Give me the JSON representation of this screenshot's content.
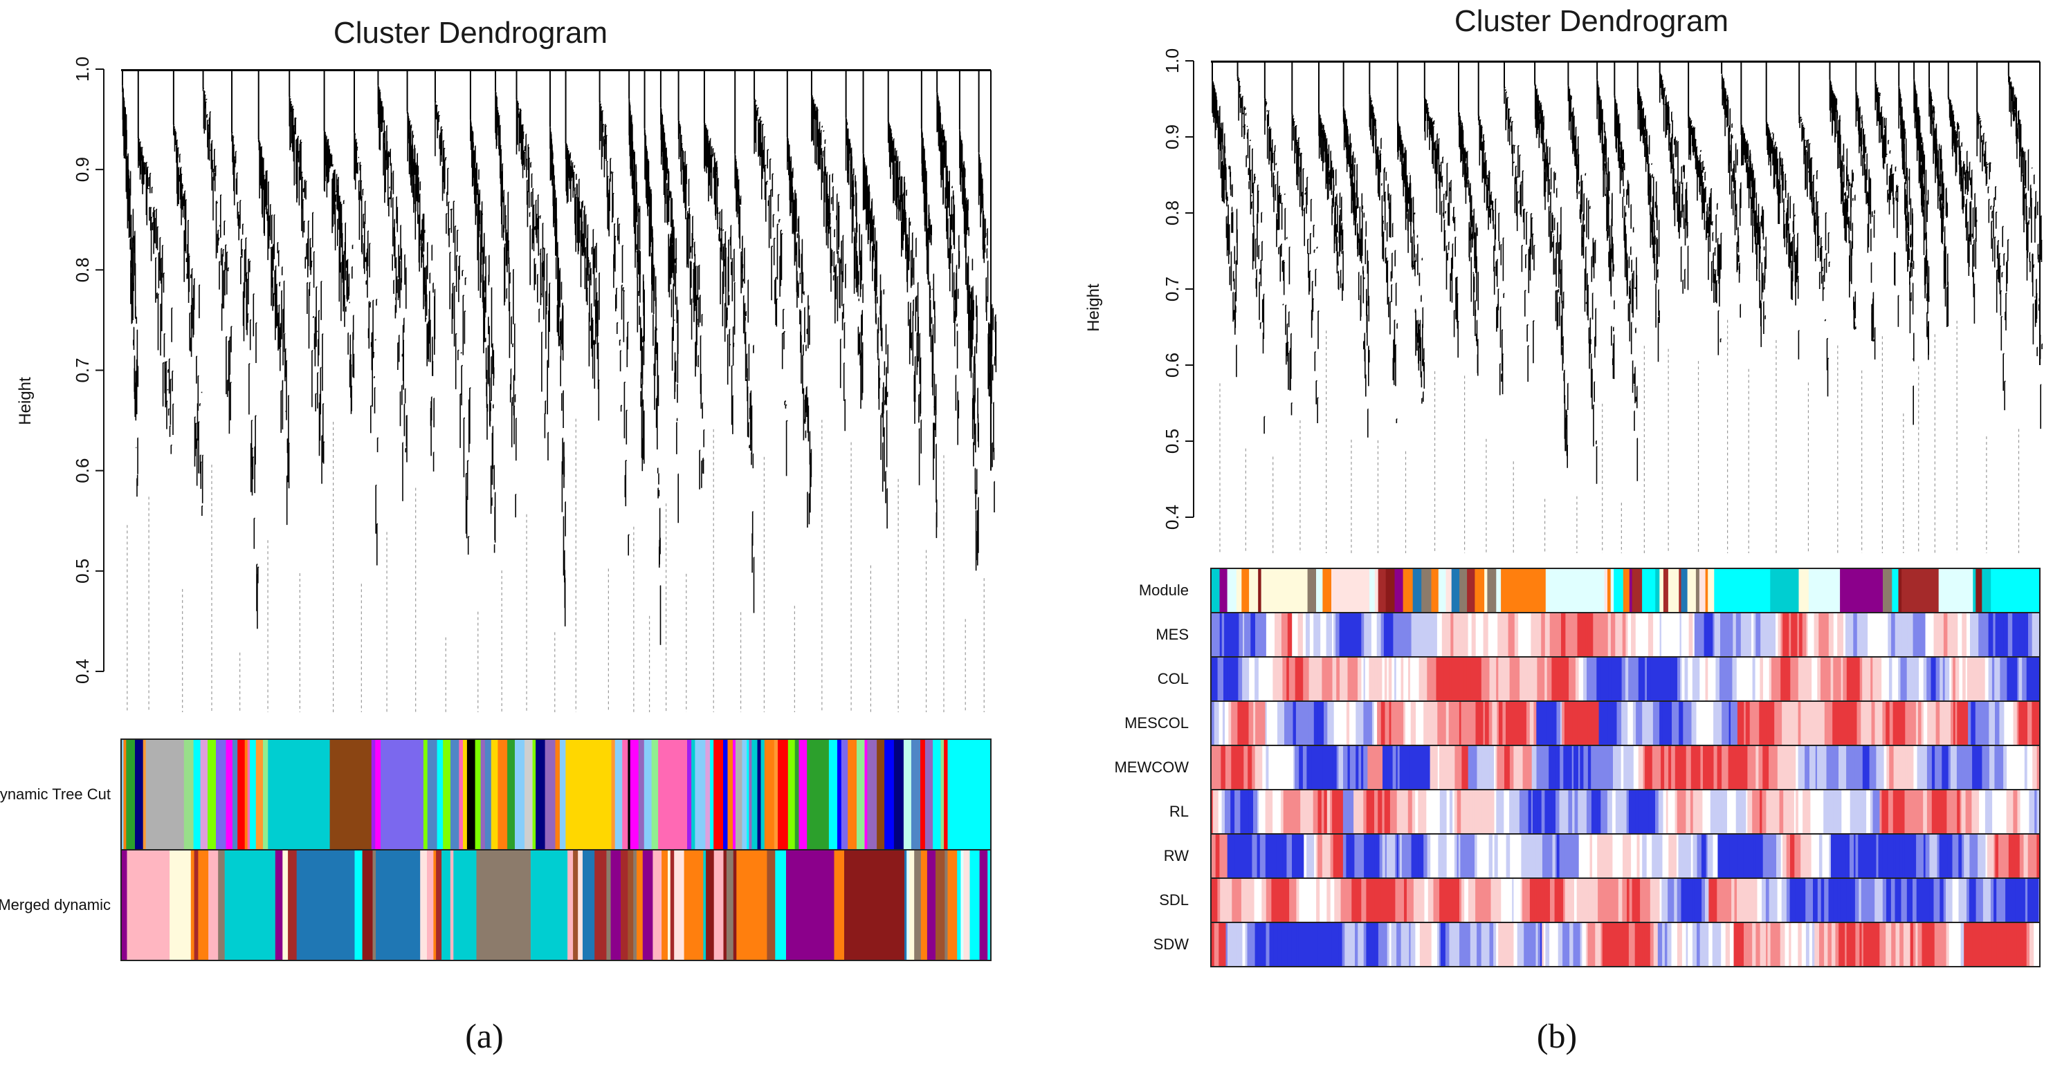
{
  "chart_data": [
    {
      "panel_id": "a",
      "type": "dendrogram",
      "title": "Cluster Dendrogram",
      "ylabel": "Height",
      "y_ticks": [
        0.4,
        0.5,
        0.6,
        0.7,
        0.8,
        0.9,
        1.0
      ],
      "ylim": [
        0.38,
        1.0
      ],
      "panel_label": "(a)",
      "color_rows": [
        {
          "label": "Dynamic Tree Cut",
          "palette": [
            "#4f86c6",
            "#ff7f0e",
            "#ff9933",
            "#b0b0b0",
            "#ff00ff",
            "#2ca02c",
            "#98df8a",
            "#90ee90",
            "#00ffff",
            "#000080",
            "#ff69b4",
            "#7fff00",
            "#ffd700",
            "#cfcfcf",
            "#0000ff",
            "#9467bd",
            "#a020f0",
            "#000000",
            "#ff0000",
            "#00ced1",
            "#dda0dd",
            "#8b4513",
            "#87cefa",
            "#c0ffee",
            "#7b68ee"
          ]
        },
        {
          "label": "Merged dynamic",
          "palette": [
            "#1f77b4",
            "#ff7f0e",
            "#00ced1",
            "#a52a2a",
            "#8b1a1a",
            "#e0ffff",
            "#8b008b",
            "#ffe4e1",
            "#a0522d",
            "#8c7b6b",
            "#fffadc",
            "#ffb6c1",
            "#00ffff"
          ]
        }
      ]
    },
    {
      "panel_id": "b",
      "type": "dendrogram",
      "title": "Cluster Dendrogram",
      "ylabel": "Height",
      "y_ticks": [
        0.4,
        0.5,
        0.6,
        0.7,
        0.8,
        0.9,
        1.0
      ],
      "ylim": [
        0.38,
        1.0
      ],
      "panel_label": "(b)",
      "color_rows": [
        {
          "label": "Module",
          "palette": [
            "#1f77b4",
            "#ff7f0e",
            "#00ced1",
            "#a52a2a",
            "#8b1a1a",
            "#e0ffff",
            "#8b008b",
            "#ffe4e1",
            "#8c7b6b",
            "#fffadc",
            "#00ffff"
          ]
        },
        {
          "label": "MES",
          "palette": [
            "#e8383d",
            "#f58a8c",
            "#fbd0d0",
            "#ffffff",
            "#c8cdf5",
            "#7f86ec",
            "#2b35e2"
          ]
        },
        {
          "label": "COL",
          "palette": [
            "#e8383d",
            "#f58a8c",
            "#fbd0d0",
            "#ffffff",
            "#c8cdf5",
            "#7f86ec",
            "#2b35e2"
          ]
        },
        {
          "label": "MESCOL",
          "palette": [
            "#e8383d",
            "#f58a8c",
            "#fbd0d0",
            "#ffffff",
            "#c8cdf5",
            "#7f86ec",
            "#2b35e2"
          ]
        },
        {
          "label": "MEWCOW",
          "palette": [
            "#e8383d",
            "#f58a8c",
            "#fbd0d0",
            "#ffffff",
            "#c8cdf5",
            "#7f86ec",
            "#2b35e2"
          ]
        },
        {
          "label": "RL",
          "palette": [
            "#e8383d",
            "#f58a8c",
            "#fbd0d0",
            "#ffffff",
            "#c8cdf5",
            "#7f86ec",
            "#2b35e2"
          ]
        },
        {
          "label": "RW",
          "palette": [
            "#e8383d",
            "#f58a8c",
            "#fbd0d0",
            "#ffffff",
            "#c8cdf5",
            "#7f86ec",
            "#2b35e2"
          ]
        },
        {
          "label": "SDL",
          "palette": [
            "#e8383d",
            "#f58a8c",
            "#fbd0d0",
            "#ffffff",
            "#c8cdf5",
            "#7f86ec",
            "#2b35e2"
          ]
        },
        {
          "label": "SDW",
          "palette": [
            "#e8383d",
            "#f58a8c",
            "#fbd0d0",
            "#ffffff",
            "#c8cdf5",
            "#7f86ec",
            "#2b35e2"
          ]
        }
      ]
    }
  ]
}
